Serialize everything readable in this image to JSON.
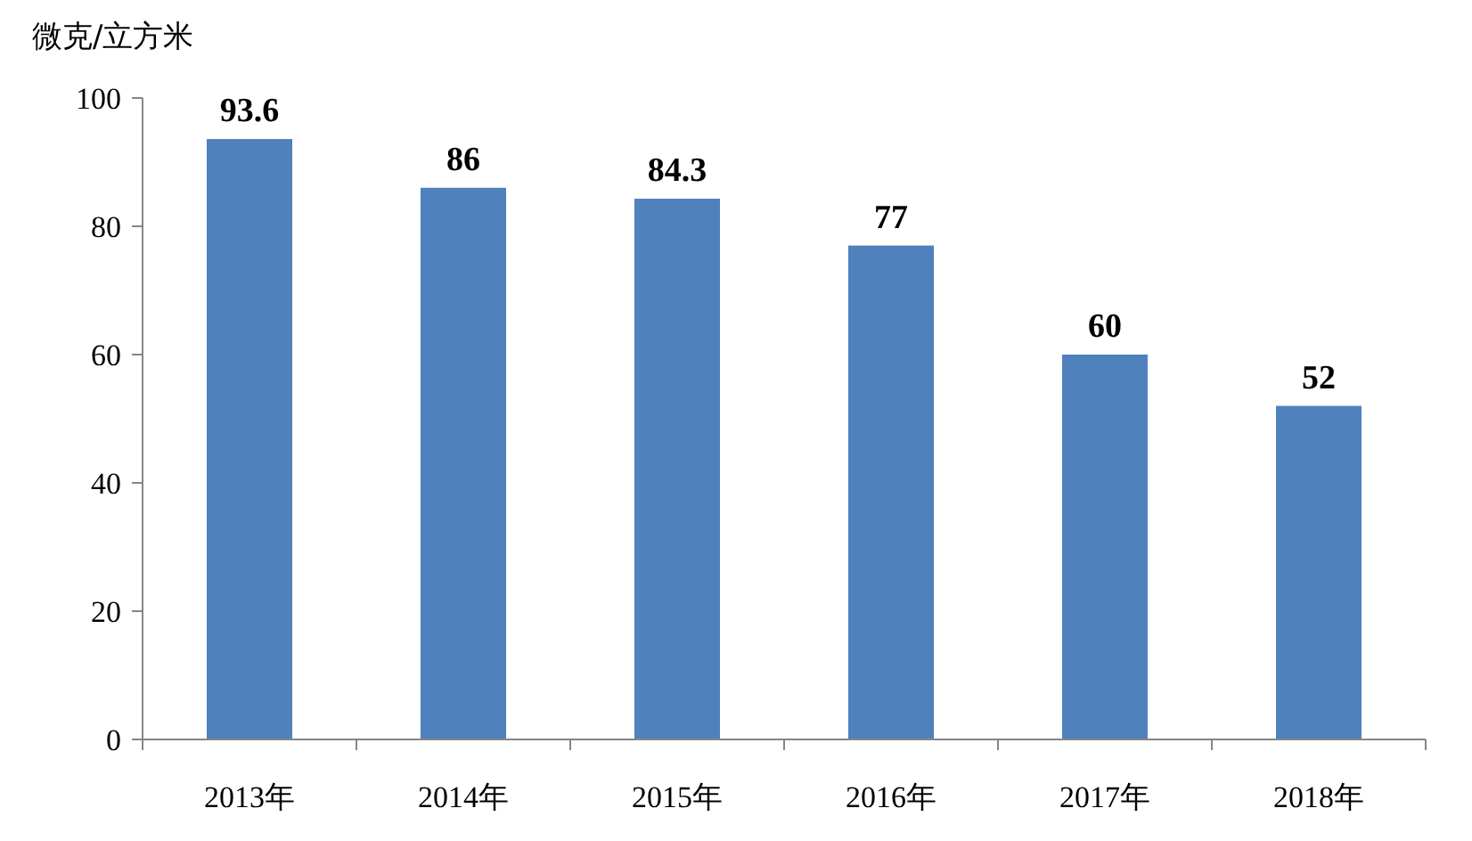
{
  "chart_data": {
    "type": "bar",
    "ylabel": "微克/立方米",
    "categories": [
      "2013年",
      "2014年",
      "2015年",
      "2016年",
      "2017年",
      "2018年"
    ],
    "values": [
      93.6,
      86,
      84.3,
      77,
      60,
      52
    ],
    "color": "#4f81bd",
    "ylim": [
      0,
      100
    ],
    "yticks": [
      0,
      20,
      40,
      60,
      80,
      100
    ],
    "data_labels": true,
    "grid": false
  }
}
